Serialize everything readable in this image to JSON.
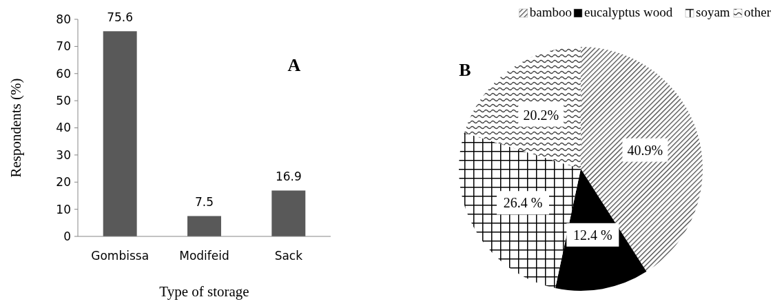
{
  "chart_data": [
    {
      "type": "bar",
      "title": "A",
      "xlabel": "Type of storage",
      "ylabel": "Respondents (%)",
      "categories": [
        "Gombissa",
        "Modifeid",
        "Sack"
      ],
      "values": [
        75.6,
        7.5,
        16.9
      ],
      "color": "#595959",
      "ylim": [
        0,
        80
      ],
      "yticks": [
        0,
        10,
        20,
        30,
        40,
        50,
        60,
        70,
        80
      ],
      "data_labels": true
    },
    {
      "type": "pie",
      "title": "B",
      "categories": [
        "bamboo",
        "eucalyptus wood",
        "soyam",
        "other"
      ],
      "values": [
        40.9,
        12.4,
        26.4,
        20.2
      ],
      "colors": [
        "#404040",
        "#000000",
        "#000000",
        "#404040"
      ],
      "value_labels": [
        "40.9%",
        "12.4 %",
        "26.4 %",
        "20.2%"
      ],
      "legend": "top right"
    }
  ]
}
